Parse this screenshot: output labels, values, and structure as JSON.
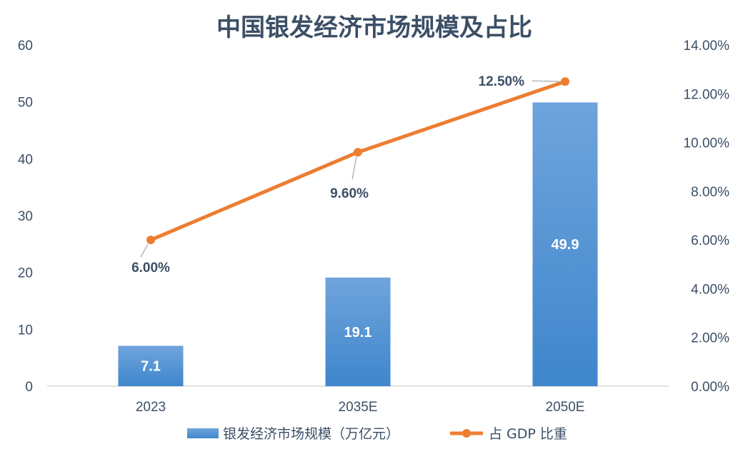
{
  "chart_data": {
    "type": "bar+line",
    "title": "中国银发经济市场规模及占比",
    "categories": [
      "2023",
      "2035E",
      "2050E"
    ],
    "series": [
      {
        "name": "银发经济市场规模（万亿元）",
        "type": "bar",
        "axis": "left",
        "values": [
          7.1,
          19.1,
          49.9
        ],
        "labels": [
          "7.1",
          "19.1",
          "49.9"
        ],
        "color": "#4a90d9"
      },
      {
        "name": "占 GDP 比重",
        "type": "line",
        "axis": "right",
        "values": [
          6.0,
          9.6,
          12.5
        ],
        "labels": [
          "6.00%",
          "9.60%",
          "12.50%"
        ],
        "color": "#ed7d31"
      }
    ],
    "y_left": {
      "ylim": [
        0,
        60
      ],
      "ticks": [
        "0",
        "10",
        "20",
        "30",
        "40",
        "50",
        "60"
      ]
    },
    "y_right": {
      "ylim": [
        0,
        14
      ],
      "ticks": [
        "0.00%",
        "2.00%",
        "4.00%",
        "6.00%",
        "8.00%",
        "10.00%",
        "12.00%",
        "14.00%"
      ]
    },
    "grid": false,
    "legend_position": "bottom"
  }
}
